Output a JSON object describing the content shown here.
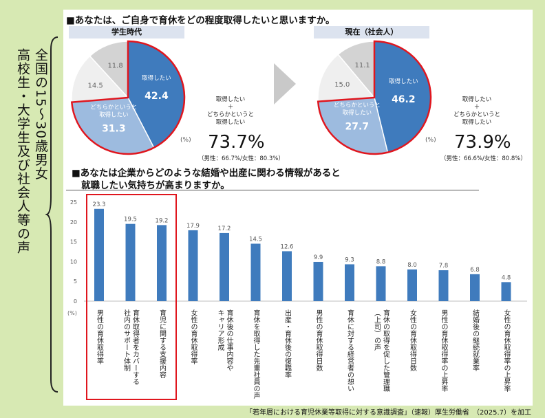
{
  "side_label": {
    "line1": "全国の15～30歳男女",
    "line2": "高校生・大学生及び社会人等の声"
  },
  "survey1": {
    "title": "■あなたは、ご自身で育休をどの程度取得したいと思いますか。",
    "pct_unit": "(%)",
    "combined_label": "取得したい\n＋\nどちらかというと\n取得したい",
    "left": {
      "header": "学生時代",
      "slices": [
        {
          "label": "取得したい",
          "value": 42.4,
          "color": "#3f7bbd"
        },
        {
          "label": "どちらかというと\n取得したい",
          "value": 31.3,
          "color": "#9dbbdf"
        },
        {
          "label": "",
          "value": 14.5,
          "color": "#efefef"
        },
        {
          "label": "",
          "value": 11.8,
          "color": "#d3d3d3"
        }
      ],
      "total": "73.7%",
      "gender": "（男性：66.7%/女性：80.3%）"
    },
    "right": {
      "header": "現在（社会人）",
      "slices": [
        {
          "label": "取得したい",
          "value": 46.2,
          "color": "#3f7bbd"
        },
        {
          "label": "どちらかというと\n取得したい",
          "value": 27.7,
          "color": "#9dbbdf"
        },
        {
          "label": "",
          "value": 15.0,
          "color": "#efefef"
        },
        {
          "label": "",
          "value": 11.1,
          "color": "#d3d3d3"
        }
      ],
      "total": "73.9%",
      "gender": "（男性：66.6%/女性：80.8%）"
    }
  },
  "survey2": {
    "title_line1": "■あなたは企業からどのような結婚や出産に関わる情報があると",
    "title_line2": "就職したい気持ちが高まりますか。"
  },
  "chart_data": [
    {
      "type": "pie",
      "title": "学生時代",
      "categories": [
        "取得したい",
        "どちらかというと取得したい",
        "",
        ""
      ],
      "values": [
        42.4,
        31.3,
        14.5,
        11.8
      ]
    },
    {
      "type": "pie",
      "title": "現在（社会人）",
      "categories": [
        "取得したい",
        "どちらかというと取得したい",
        "",
        ""
      ],
      "values": [
        46.2,
        27.7,
        15.0,
        11.1
      ]
    },
    {
      "type": "bar",
      "title": "■あなたは企業からどのような結婚や出産に関わる情報があると就職したい気持ちが高まりますか。",
      "ylabel": "(%)",
      "ylim": [
        0,
        25
      ],
      "yticks": [
        0,
        5,
        10,
        15,
        20,
        25
      ],
      "grid": false,
      "color": "#3f7bbd",
      "highlight_first": 3,
      "categories": [
        "男性の育休取得率",
        "育休取得者をカバーする\n社内のサポート体制",
        "育児に関する支援内容",
        "女性の育休取得率",
        "育休後の仕事内容や\nキャリア形成",
        "育休を取得した先輩社員の声",
        "出産・育休後の復職率",
        "男性の育休取得日数",
        "育休に対する経営者の想い",
        "育休の取得を促した管理職\n（上司）の声",
        "女性の育休取得日数",
        "男性の育休取得率の上昇率",
        "結婚後の継続就業率",
        "女性の育休取得率の上昇率"
      ],
      "values": [
        23.3,
        19.5,
        19.2,
        17.9,
        17.2,
        14.5,
        12.6,
        9.9,
        9.3,
        8.8,
        8.0,
        7.8,
        6.8,
        4.8
      ]
    }
  ],
  "footer": "「若年層における育児休業等取得に対する意識調査」（速報）厚生労働省　（2025.7）を加工"
}
